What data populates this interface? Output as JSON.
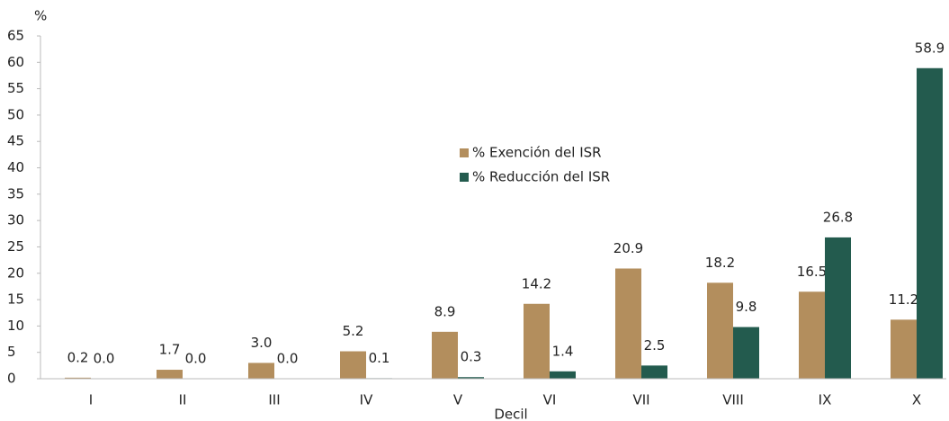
{
  "chart_data": {
    "type": "bar",
    "y_unit": "%",
    "xlabel": "Decil",
    "categories": [
      "I",
      "II",
      "III",
      "IV",
      "V",
      "VI",
      "VII",
      "VIII",
      "IX",
      "X"
    ],
    "series": [
      {
        "name": "% Exención del ISR",
        "color": "#b38e5d",
        "values": [
          0.2,
          1.7,
          3.0,
          5.2,
          8.9,
          14.2,
          20.9,
          18.2,
          16.5,
          11.2
        ],
        "value_labels": [
          "0.2",
          "1.7",
          "3.0",
          "5.2",
          "8.9",
          "14.2",
          "20.9",
          "18.2",
          "16.5",
          "11.2"
        ]
      },
      {
        "name": "% Reducción del ISR",
        "color": "#235b4e",
        "values": [
          0.0,
          0.0,
          0.0,
          0.1,
          0.3,
          1.4,
          2.5,
          9.8,
          26.8,
          58.9
        ],
        "value_labels": [
          "0.0",
          "0.0",
          "0.0",
          "0.1",
          "0.3",
          "1.4",
          "2.5",
          "9.8",
          "26.8",
          "58.9"
        ]
      }
    ],
    "ylim": [
      0,
      65
    ],
    "yticks": [
      0,
      5,
      10,
      15,
      20,
      25,
      30,
      35,
      40,
      45,
      50,
      55,
      60,
      65
    ],
    "grid": false,
    "legend": "center"
  }
}
